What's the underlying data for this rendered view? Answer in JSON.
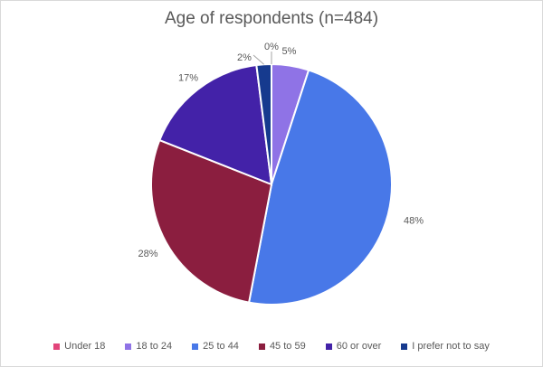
{
  "chart_data": {
    "type": "pie",
    "title": "Age of respondents (n=484)",
    "categories": [
      "Under 18",
      "18 to 24",
      "25 to 44",
      "45 to 59",
      "60 or over",
      "I prefer not to say"
    ],
    "values": [
      0,
      5,
      48,
      28,
      17,
      2
    ],
    "labels": [
      "0%",
      "5%",
      "48%",
      "28%",
      "17%",
      "2%"
    ],
    "colors": [
      "#e2457a",
      "#8f73e6",
      "#4878e8",
      "#8b1e3f",
      "#4322a8",
      "#163a8e"
    ],
    "legend_position": "bottom"
  }
}
